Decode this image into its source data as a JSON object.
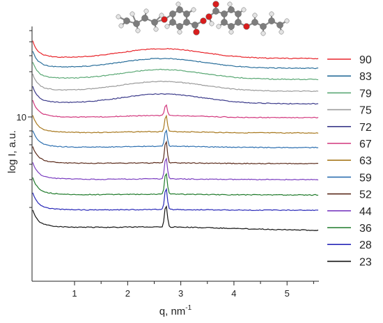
{
  "chart_data": {
    "type": "line",
    "xlabel": "q, nm",
    "xlabel_sup": "-1",
    "ylabel": "log I, a.u.",
    "x_ticks": [
      1,
      2,
      3,
      4,
      5
    ],
    "x_tick_labels": [
      "1",
      "2",
      "3",
      "4",
      "5"
    ],
    "xlim": [
      0.2,
      5.6
    ],
    "y_scale": "log",
    "y_tick_labels": [
      "10"
    ],
    "legend_position": "right",
    "molecule": "ball-and-stick model of the molecule",
    "series": [
      {
        "name": "90",
        "color": "#e8242a",
        "peak": "none"
      },
      {
        "name": "83",
        "color": "#2a6f9b",
        "peak": "none"
      },
      {
        "name": "79",
        "color": "#5aa874",
        "peak": "none"
      },
      {
        "name": "75",
        "color": "#9b9b9b",
        "peak": "none"
      },
      {
        "name": "72",
        "color": "#3b3a8a",
        "peak": "none"
      },
      {
        "name": "67",
        "color": "#d2377d",
        "peak": "small"
      },
      {
        "name": "63",
        "color": "#a8791f",
        "peak": "medium"
      },
      {
        "name": "59",
        "color": "#2c6fb0",
        "peak": "medium"
      },
      {
        "name": "52",
        "color": "#5a2a1a",
        "peak": "large"
      },
      {
        "name": "44",
        "color": "#7a3cc0",
        "peak": "large"
      },
      {
        "name": "36",
        "color": "#1f7a2a",
        "peak": "large"
      },
      {
        "name": "28",
        "color": "#2727b8",
        "peak": "large"
      },
      {
        "name": "23",
        "color": "#111111",
        "peak": "large"
      }
    ]
  }
}
